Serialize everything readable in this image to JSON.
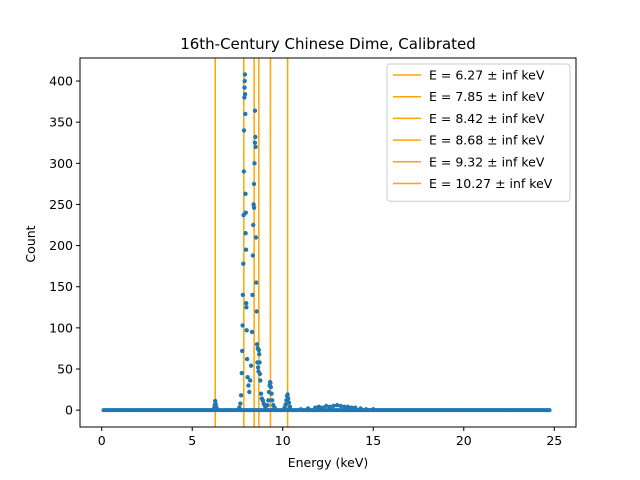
{
  "chart_data": {
    "type": "scatter",
    "title": "16th-Century Chinese Dime, Calibrated",
    "xlabel": "Energy (keV)",
    "ylabel": "Count",
    "xlim": [
      -1.2,
      26.2
    ],
    "ylim": [
      -20.5,
      428
    ],
    "xticks": [
      0,
      5,
      10,
      15,
      20,
      25
    ],
    "yticks": [
      0,
      50,
      100,
      150,
      200,
      250,
      300,
      350,
      400
    ],
    "grid": false,
    "legend_position": "top-right",
    "colors": {
      "points": "#1f77b4",
      "lines": "#ffa500"
    },
    "vertical_lines": [
      {
        "x": 6.27,
        "label": "E = 6.27 ± inf keV"
      },
      {
        "x": 7.85,
        "label": "E = 7.85 ± inf keV"
      },
      {
        "x": 8.42,
        "label": "E = 8.42 ± inf keV"
      },
      {
        "x": 8.68,
        "label": "E = 8.68 ± inf keV"
      },
      {
        "x": 9.32,
        "label": "E = 9.32 ± inf keV"
      },
      {
        "x": 10.27,
        "label": "E = 10.27 ± inf keV"
      }
    ],
    "peak_points": [
      [
        6.2,
        2
      ],
      [
        6.24,
        6
      ],
      [
        6.27,
        11
      ],
      [
        6.3,
        7
      ],
      [
        6.34,
        3
      ],
      [
        7.6,
        3
      ],
      [
        7.66,
        8
      ],
      [
        7.7,
        18
      ],
      [
        7.74,
        45
      ],
      [
        7.76,
        72
      ],
      [
        7.78,
        103
      ],
      [
        7.8,
        140
      ],
      [
        7.82,
        178
      ],
      [
        7.84,
        237
      ],
      [
        7.85,
        290
      ],
      [
        7.86,
        340
      ],
      [
        7.88,
        380
      ],
      [
        7.89,
        392
      ],
      [
        7.9,
        400
      ],
      [
        7.91,
        408
      ],
      [
        7.92,
        384
      ],
      [
        7.93,
        360
      ],
      [
        7.94,
        263
      ],
      [
        7.95,
        215
      ],
      [
        7.96,
        240
      ],
      [
        7.97,
        195
      ],
      [
        7.98,
        130
      ],
      [
        7.99,
        125
      ],
      [
        8.01,
        97
      ],
      [
        8.03,
        62
      ],
      [
        8.06,
        40
      ],
      [
        8.1,
        30
      ],
      [
        8.15,
        22
      ],
      [
        8.2,
        36
      ],
      [
        8.25,
        54
      ],
      [
        8.3,
        95
      ],
      [
        8.33,
        140
      ],
      [
        8.35,
        188
      ],
      [
        8.37,
        225
      ],
      [
        8.39,
        250
      ],
      [
        8.41,
        275
      ],
      [
        8.42,
        246
      ],
      [
        8.44,
        300
      ],
      [
        8.46,
        325
      ],
      [
        8.47,
        364
      ],
      [
        8.49,
        332
      ],
      [
        8.5,
        320
      ],
      [
        8.52,
        210
      ],
      [
        8.54,
        155
      ],
      [
        8.56,
        120
      ],
      [
        8.58,
        80
      ],
      [
        8.6,
        58
      ],
      [
        8.62,
        75
      ],
      [
        8.64,
        52
      ],
      [
        8.66,
        47
      ],
      [
        8.68,
        73
      ],
      [
        8.7,
        68
      ],
      [
        8.72,
        58
      ],
      [
        8.74,
        44
      ],
      [
        8.76,
        36
      ],
      [
        8.8,
        20
      ],
      [
        8.85,
        14
      ],
      [
        8.9,
        12
      ],
      [
        8.95,
        8
      ],
      [
        9.0,
        6
      ],
      [
        9.05,
        4
      ],
      [
        9.15,
        6
      ],
      [
        9.2,
        12
      ],
      [
        9.24,
        22
      ],
      [
        9.28,
        30
      ],
      [
        9.3,
        34
      ],
      [
        9.32,
        33
      ],
      [
        9.34,
        28
      ],
      [
        9.38,
        20
      ],
      [
        9.42,
        12
      ],
      [
        9.48,
        6
      ],
      [
        9.55,
        3
      ],
      [
        10.1,
        3
      ],
      [
        10.16,
        7
      ],
      [
        10.2,
        12
      ],
      [
        10.24,
        17
      ],
      [
        10.27,
        19
      ],
      [
        10.3,
        14
      ],
      [
        10.34,
        9
      ],
      [
        10.4,
        4
      ],
      [
        11.0,
        1
      ],
      [
        11.4,
        2
      ],
      [
        11.8,
        3
      ],
      [
        12.0,
        4
      ],
      [
        12.2,
        3
      ],
      [
        12.4,
        5
      ],
      [
        12.6,
        4
      ],
      [
        12.8,
        5
      ],
      [
        13.0,
        6
      ],
      [
        13.2,
        5
      ],
      [
        13.4,
        4
      ],
      [
        13.6,
        4
      ],
      [
        13.8,
        3
      ],
      [
        14.0,
        3
      ],
      [
        14.3,
        2
      ],
      [
        14.6,
        1
      ],
      [
        15.0,
        1
      ]
    ]
  }
}
